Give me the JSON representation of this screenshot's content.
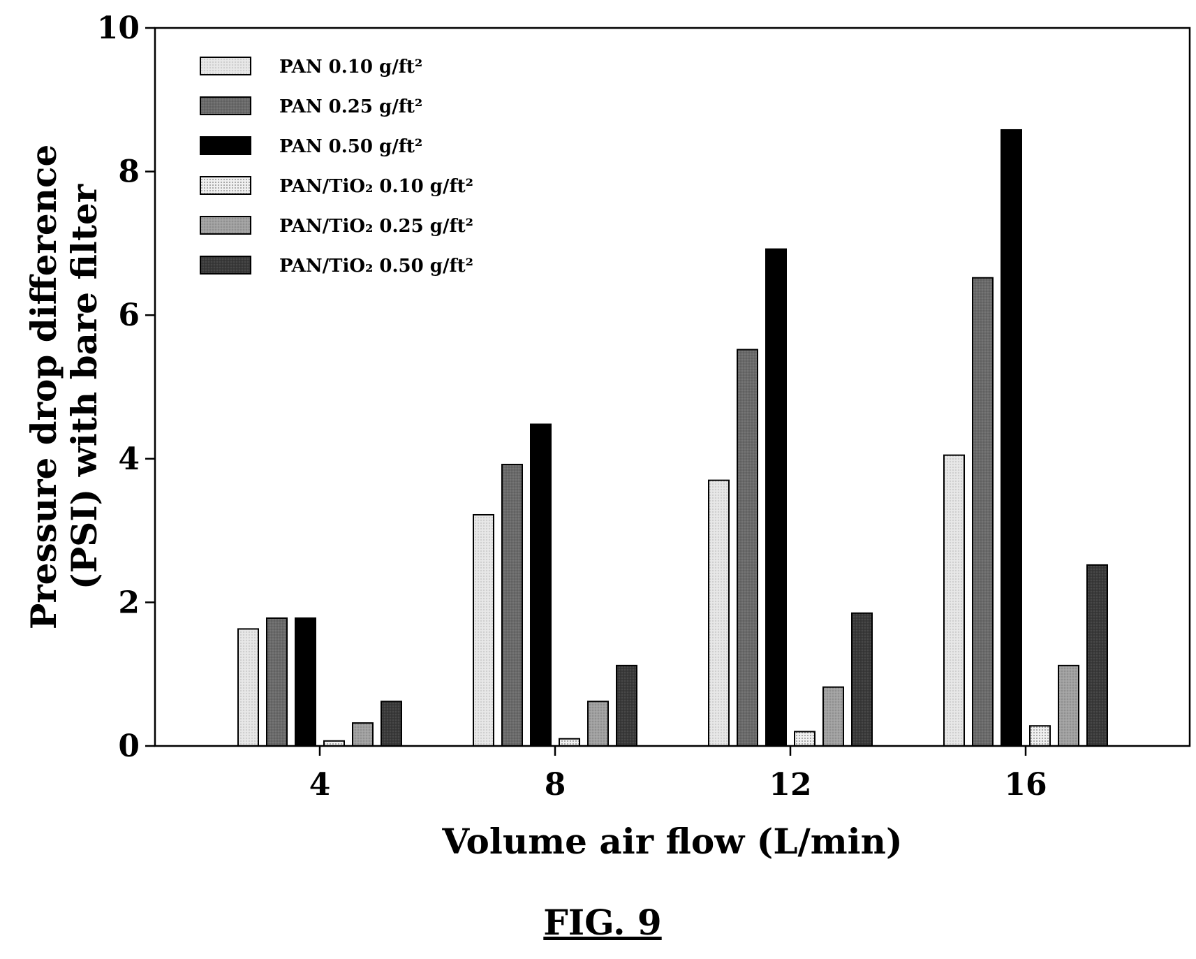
{
  "chart_data": {
    "type": "bar",
    "categories": [
      "4",
      "8",
      "12",
      "16"
    ],
    "series": [
      {
        "name": "PAN 0.10 g/ft²",
        "values": [
          1.63,
          3.22,
          3.7,
          4.05
        ],
        "color": "#e6e6e6",
        "pattern": "dots"
      },
      {
        "name": "PAN 0.25 g/ft²",
        "values": [
          1.78,
          3.92,
          5.52,
          6.52
        ],
        "color": "#6a6a6a",
        "pattern": "dots"
      },
      {
        "name": "PAN 0.50 g/ft²",
        "values": [
          1.78,
          4.48,
          6.92,
          8.58
        ],
        "color": "#000000",
        "pattern": "none"
      },
      {
        "name": "PAN/TiO₂ 0.10 g/ft²",
        "values": [
          0.07,
          0.1,
          0.2,
          0.28
        ],
        "color": "#f0f0f0",
        "pattern": "sparse-dots"
      },
      {
        "name": "PAN/TiO₂ 0.25 g/ft²",
        "values": [
          0.32,
          0.62,
          0.82,
          1.12
        ],
        "color": "#a0a0a0",
        "pattern": "dots"
      },
      {
        "name": "PAN/TiO₂ 0.50 g/ft²",
        "values": [
          0.62,
          1.12,
          1.85,
          2.52
        ],
        "color": "#3a3a3a",
        "pattern": "dots"
      }
    ],
    "xlabel": "Volume air flow (L/min)",
    "ylabel_line1": "Pressure drop difference",
    "ylabel_line2": "(PSI) with bare filter",
    "ylim": [
      0,
      10
    ],
    "yticks": [
      "0",
      "2",
      "4",
      "6",
      "8",
      "10"
    ],
    "grid": false,
    "legend_position": "top-left"
  },
  "figure_label": "FIG. 9"
}
